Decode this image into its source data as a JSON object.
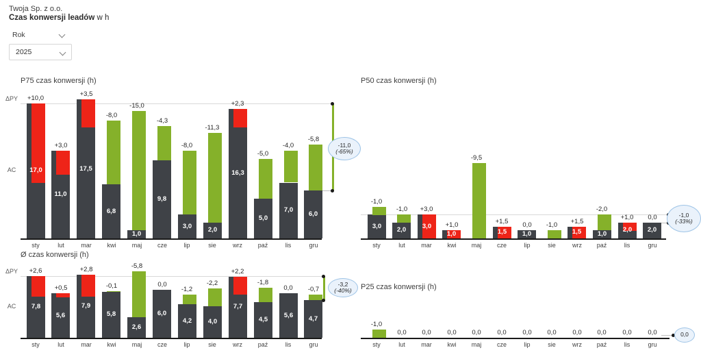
{
  "header": {
    "company": "Twoja Sp. z o.o.",
    "title_bold": "Czas konwersji leadów",
    "title_suffix": " w h",
    "filter_label": "Rok",
    "filter_value": "2025"
  },
  "colors": {
    "bar_actual": "#3f4247",
    "variance_positive": "#ee2418",
    "variance_negative": "#85b12a",
    "reference_line": "#d8d8d8",
    "axis": "#1a1a1a",
    "annotation_border": "#9dc3e6",
    "annotation_fill": "#eaf2fb",
    "text_primary": "#3c3c3c"
  },
  "chart_data": [
    {
      "id": "p75",
      "type": "bar",
      "title": "P75 czas konwersji (h)",
      "axis_left_labels": [
        "ΔPY",
        "AC"
      ],
      "categories": [
        "sty",
        "lut",
        "mar",
        "kwi",
        "maj",
        "cze",
        "lip",
        "sie",
        "wrz",
        "paź",
        "lis",
        "gru"
      ],
      "series": [
        {
          "name": "AC",
          "values": [
            17.0,
            11.0,
            17.5,
            6.8,
            1.0,
            9.8,
            3.0,
            2.0,
            16.3,
            5.0,
            7.0,
            6.0
          ],
          "labels": [
            "17,0",
            "11,0",
            "17,5",
            "6,8",
            "1,0",
            "9,8",
            "3,0",
            "2,0",
            "16,3",
            "5,0",
            "7,0",
            "6,0"
          ]
        },
        {
          "name": "ΔPY",
          "values": [
            10.0,
            3.0,
            3.5,
            -8.0,
            -15.0,
            -4.3,
            -8.0,
            -11.3,
            2.3,
            -5.0,
            -4.0,
            -5.8
          ],
          "labels": [
            "+10,0",
            "+3,0",
            "+3,5",
            "-8,0",
            "-15,0",
            "-4,3",
            "-8,0",
            "-11,3",
            "+2,3",
            "-5,0",
            "-4,0",
            "-5,8"
          ]
        }
      ],
      "summary": {
        "value": "-11,0",
        "pct": "(-65%)"
      }
    },
    {
      "id": "p50",
      "type": "bar",
      "title": "P50 czas konwersji (h)",
      "categories": [
        "sty",
        "lut",
        "mar",
        "kwi",
        "maj",
        "cze",
        "lip",
        "sie",
        "wrz",
        "paź",
        "lis",
        "gru"
      ],
      "series": [
        {
          "name": "AC",
          "values": [
            3.0,
            2.0,
            3.0,
            1.0,
            0,
            1.5,
            1.0,
            0,
            1.5,
            1.0,
            2.0,
            2.0
          ],
          "labels": [
            "3,0",
            "2,0",
            "3,0",
            "1,0",
            null,
            "1,5",
            "1,0",
            null,
            "1,5",
            "1,0",
            "2,0",
            "2,0"
          ]
        },
        {
          "name": "ΔPY",
          "values": [
            -1.0,
            -1.0,
            3.0,
            1.0,
            -9.5,
            1.5,
            0,
            -1.0,
            1.5,
            -2.0,
            1.0,
            0
          ],
          "labels": [
            "-1,0",
            "-1,0",
            "+3,0",
            "+1,0",
            "-9,5",
            "+1,5",
            "0,0",
            "-1,0",
            "+1,5",
            "-2,0",
            "+1,0",
            "0,0"
          ]
        }
      ],
      "summary": {
        "value": "-1,0",
        "pct": "(-33%)"
      }
    },
    {
      "id": "avg",
      "type": "bar",
      "title": "Ø czas konwersji (h)",
      "axis_left_labels": [
        "ΔPY",
        "AC"
      ],
      "categories": [
        "sty",
        "lut",
        "mar",
        "kwi",
        "maj",
        "cze",
        "lip",
        "sie",
        "wrz",
        "paź",
        "lis",
        "gru"
      ],
      "series": [
        {
          "name": "AC",
          "values": [
            7.8,
            5.6,
            7.9,
            5.8,
            2.6,
            6.0,
            4.2,
            4.0,
            7.7,
            4.5,
            5.6,
            4.7
          ],
          "labels": [
            "7,8",
            "5,6",
            "7,9",
            "5,8",
            "2,6",
            "6,0",
            "4,2",
            "4,0",
            "7,7",
            "4,5",
            "5,6",
            "4,7"
          ]
        },
        {
          "name": "ΔPY",
          "values": [
            2.6,
            0.5,
            2.8,
            -0.1,
            -5.8,
            0,
            -1.2,
            -2.2,
            2.2,
            -1.8,
            0,
            -0.7
          ],
          "labels": [
            "+2,6",
            "+0,5",
            "+2,8",
            "-0,1",
            "-5,8",
            "0,0",
            "-1,2",
            "-2,2",
            "+2,2",
            "-1,8",
            "0,0",
            "-0,7"
          ]
        }
      ],
      "summary": {
        "value": "-3,2",
        "pct": "(-40%)"
      }
    },
    {
      "id": "p25",
      "type": "bar",
      "title": "P25 czas konwersji (h)",
      "categories": [
        "sty",
        "lut",
        "mar",
        "kwi",
        "maj",
        "cze",
        "lip",
        "sie",
        "wrz",
        "paź",
        "lis",
        "gru"
      ],
      "series": [
        {
          "name": "AC",
          "values": [
            0,
            0,
            0,
            0,
            0,
            0,
            0,
            0,
            0,
            0,
            0,
            0
          ],
          "labels": [
            null,
            null,
            null,
            null,
            null,
            null,
            null,
            null,
            null,
            null,
            null,
            null
          ]
        },
        {
          "name": "ΔPY",
          "values": [
            -1.0,
            0,
            0,
            0,
            0,
            0,
            0,
            0,
            0,
            0,
            0,
            0
          ],
          "labels": [
            "-1,0",
            "0,0",
            "0,0",
            "0,0",
            "0,0",
            "0,0",
            "0,0",
            "0,0",
            "0,0",
            "0,0",
            "0,0",
            "0,0"
          ]
        }
      ],
      "summary": {
        "value": "0,0",
        "pct": null
      }
    }
  ]
}
